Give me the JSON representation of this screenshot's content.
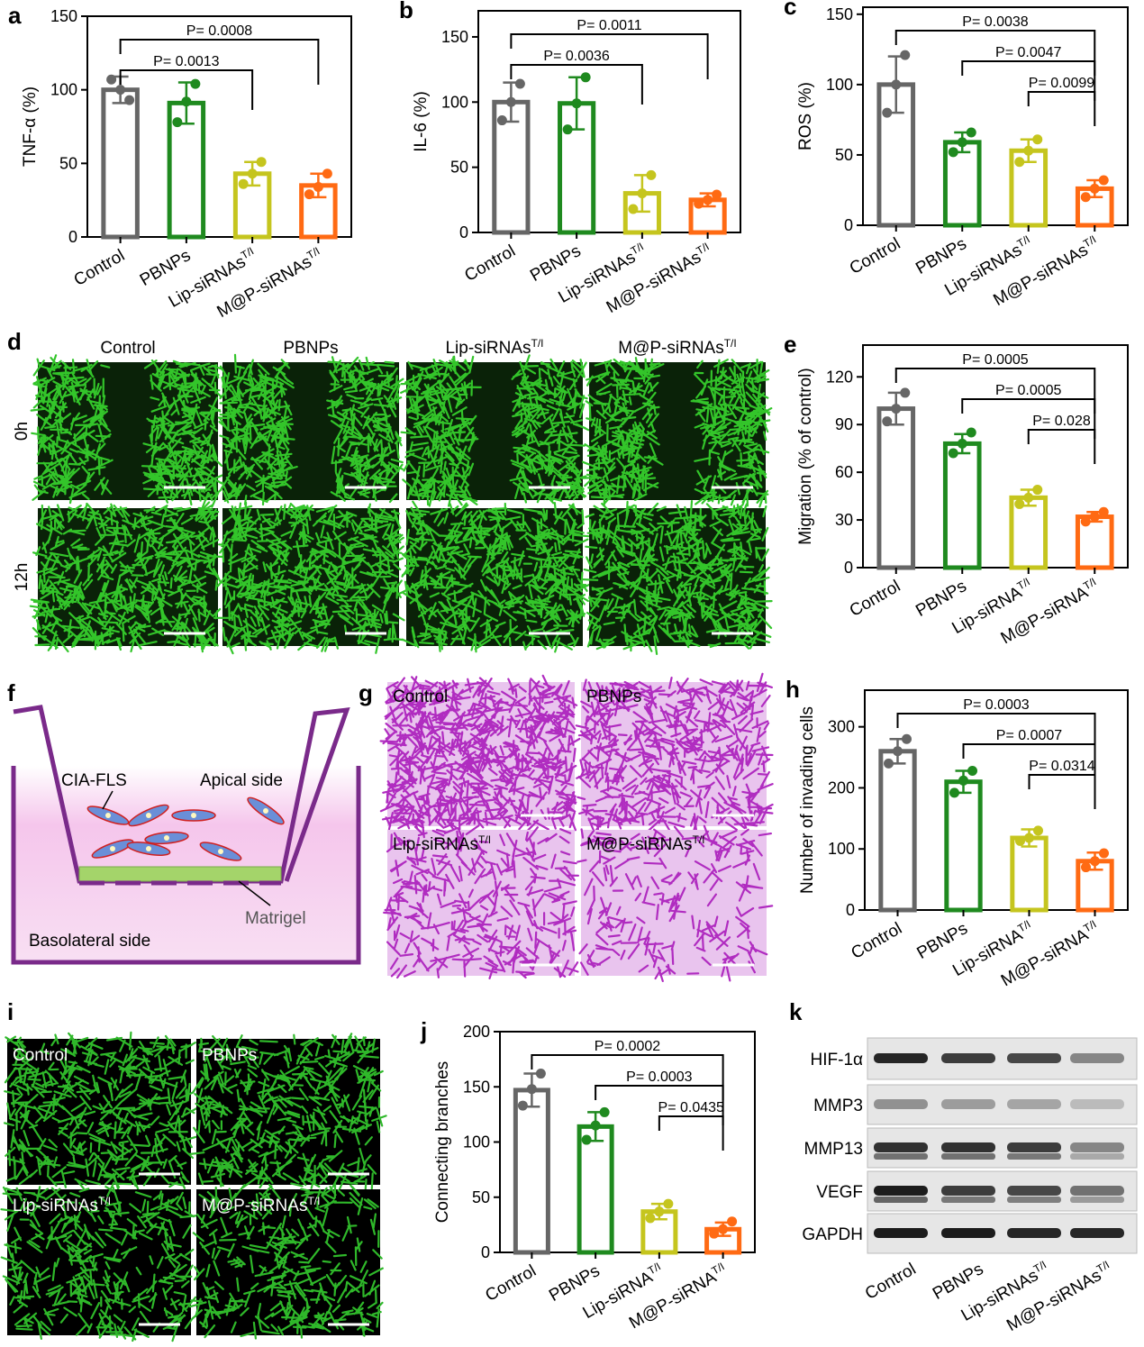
{
  "chart_data": [
    {
      "type": "bar",
      "panel": "a",
      "ylabel": "TNF-α (%)",
      "categories": [
        "Control",
        "PBNPs",
        "Lip-siRNAs",
        "M@P-siRNAs"
      ],
      "category_superscripts": [
        null,
        null,
        "T/I",
        "T/I"
      ],
      "values": [
        100,
        91,
        43,
        35
      ],
      "errors": [
        9,
        14,
        8,
        8
      ],
      "points": [
        [
          107,
          93,
          100
        ],
        [
          78,
          104,
          92
        ],
        [
          36,
          51,
          43
        ],
        [
          29,
          43,
          34
        ]
      ],
      "colors": [
        "#666666",
        "#1f8a1f",
        "#c5c51e",
        "#ff6a13"
      ],
      "ylim": [
        0,
        150
      ],
      "yticks": [
        0,
        50,
        100,
        150
      ],
      "brackets": [
        {
          "from": 0,
          "to": 3,
          "label": "P= 0.0008"
        },
        {
          "from": 0,
          "to": 2,
          "label": "P= 0.0013"
        }
      ]
    },
    {
      "type": "bar",
      "panel": "b",
      "ylabel": "IL-6 (%)",
      "categories": [
        "Control",
        "PBNPs",
        "Lip-siRNAs",
        "M@P-siRNAs"
      ],
      "category_superscripts": [
        null,
        null,
        "T/I",
        "T/I"
      ],
      "values": [
        100,
        99,
        30,
        25
      ],
      "errors": [
        15,
        20,
        14,
        5
      ],
      "points": [
        [
          86,
          114,
          100
        ],
        [
          79,
          119,
          99
        ],
        [
          18,
          44,
          30
        ],
        [
          22,
          29,
          25
        ]
      ],
      "colors": [
        "#666666",
        "#1f8a1f",
        "#c5c51e",
        "#ff6a13"
      ],
      "ylim": [
        0,
        170
      ],
      "yticks": [
        0,
        50,
        100,
        150
      ],
      "brackets": [
        {
          "from": 0,
          "to": 3,
          "label": "P= 0.0011"
        },
        {
          "from": 0,
          "to": 2,
          "label": "P= 0.0036"
        }
      ]
    },
    {
      "type": "bar",
      "panel": "c",
      "ylabel": "ROS (%)",
      "categories": [
        "Control",
        "PBNPs",
        "Lip-siRNAs",
        "M@P-siRNAs"
      ],
      "category_superscripts": [
        null,
        null,
        "T/I",
        "T/I"
      ],
      "values": [
        100,
        59,
        53,
        26
      ],
      "errors": [
        20,
        7,
        8,
        6
      ],
      "points": [
        [
          80,
          121,
          100
        ],
        [
          52,
          66,
          59
        ],
        [
          45,
          61,
          53
        ],
        [
          20,
          32,
          26
        ]
      ],
      "colors": [
        "#666666",
        "#1f8a1f",
        "#c5c51e",
        "#ff6a13"
      ],
      "ylim": [
        0,
        155
      ],
      "yticks": [
        0,
        50,
        100,
        150
      ],
      "brackets": [
        {
          "from": 0,
          "to": 3,
          "label": "P= 0.0038"
        },
        {
          "from": 1,
          "to": 3,
          "label": "P= 0.0047"
        },
        {
          "from": 2,
          "to": 3,
          "label": "P= 0.0099"
        }
      ]
    },
    {
      "type": "bar",
      "panel": "e",
      "ylabel": "Migration (% of control)",
      "categories": [
        "Control",
        "PBNPs",
        "Lip-siRNA",
        "M@P-siRNA"
      ],
      "category_superscripts": [
        null,
        null,
        "T/I",
        "T/I"
      ],
      "values": [
        100,
        78,
        44,
        32
      ],
      "errors": [
        10,
        6,
        5,
        3
      ],
      "points": [
        [
          92,
          110,
          100
        ],
        [
          72,
          85,
          78
        ],
        [
          40,
          49,
          44
        ],
        [
          29,
          35,
          32
        ]
      ],
      "colors": [
        "#666666",
        "#1f8a1f",
        "#c5c51e",
        "#ff6a13"
      ],
      "ylim": [
        0,
        140
      ],
      "yticks": [
        0,
        30,
        60,
        90,
        120
      ],
      "brackets": [
        {
          "from": 0,
          "to": 3,
          "label": "P= 0.0005"
        },
        {
          "from": 1,
          "to": 3,
          "label": "P= 0.0005"
        },
        {
          "from": 2,
          "to": 3,
          "label": "P= 0.028"
        }
      ]
    },
    {
      "type": "bar",
      "panel": "h",
      "ylabel": "Number of invading cells",
      "categories": [
        "Control",
        "PBNPs",
        "Lip-siRNA",
        "M@P-siRNA"
      ],
      "category_superscripts": [
        null,
        null,
        "T/I",
        "T/I"
      ],
      "values": [
        260,
        210,
        118,
        80
      ],
      "errors": [
        20,
        18,
        14,
        14
      ],
      "points": [
        [
          240,
          280,
          260
        ],
        [
          192,
          228,
          212
        ],
        [
          113,
          130,
          118
        ],
        [
          70,
          93,
          80
        ]
      ],
      "colors": [
        "#666666",
        "#1f8a1f",
        "#c5c51e",
        "#ff6a13"
      ],
      "ylim": [
        0,
        360
      ],
      "yticks": [
        0,
        100,
        200,
        300
      ],
      "brackets": [
        {
          "from": 0,
          "to": 3,
          "label": "P= 0.0003"
        },
        {
          "from": 1,
          "to": 3,
          "label": "P= 0.0007"
        },
        {
          "from": 2,
          "to": 3,
          "label": "P= 0.0314"
        }
      ]
    },
    {
      "type": "bar",
      "panel": "j",
      "ylabel": "Connecting branches",
      "categories": [
        "Control",
        "PBNPs",
        "Lip-siRNA",
        "M@P-siRNA"
      ],
      "category_superscripts": [
        null,
        null,
        "T/I",
        "T/I"
      ],
      "values": [
        147,
        114,
        37,
        21
      ],
      "errors": [
        15,
        13,
        7,
        6
      ],
      "points": [
        [
          133,
          162,
          148
        ],
        [
          102,
          127,
          115
        ],
        [
          31,
          44,
          37
        ],
        [
          17,
          28,
          21
        ]
      ],
      "colors": [
        "#666666",
        "#1f8a1f",
        "#c5c51e",
        "#ff6a13"
      ],
      "ylim": [
        0,
        200
      ],
      "yticks": [
        0,
        50,
        100,
        150,
        200
      ],
      "brackets": [
        {
          "from": 0,
          "to": 3,
          "label": "P= 0.0002"
        },
        {
          "from": 1,
          "to": 3,
          "label": "P= 0.0003"
        },
        {
          "from": 2,
          "to": 3,
          "label": "P= 0.0435"
        }
      ]
    }
  ],
  "image_panels": {
    "d": {
      "letter": "d",
      "columns": [
        {
          "text": "Control"
        },
        {
          "text": "PBNPs"
        },
        {
          "text": "Lip-siRNAs",
          "sup": "T/I"
        },
        {
          "text": "M@P-siRNAs",
          "sup": "T/I"
        }
      ],
      "rows": [
        "0h",
        "12h"
      ]
    },
    "f": {
      "letter": "f",
      "cells": "CIA-FLS",
      "apical": "Apical side",
      "matrigel": "Matrigel",
      "basolateral": "Basolateral side"
    },
    "g": {
      "letter": "g",
      "tiles": [
        {
          "text": "Control"
        },
        {
          "text": "PBNPs"
        },
        {
          "text": "Lip-siRNAs",
          "sup": "T/I"
        },
        {
          "text": "M@P-siRNAs",
          "sup": "T/I"
        }
      ]
    },
    "i": {
      "letter": "i",
      "tiles": [
        {
          "text": "Control"
        },
        {
          "text": "PBNPs"
        },
        {
          "text": "Lip-siRNAs",
          "sup": "T/I"
        },
        {
          "text": "M@P-siRNAs",
          "sup": "T/I"
        }
      ]
    },
    "k": {
      "letter": "k",
      "bands": [
        "HIF-1α",
        "MMP3",
        "MMP13",
        "VEGF",
        "GAPDH"
      ],
      "lanes": [
        {
          "text": "Control"
        },
        {
          "text": "PBNPs"
        },
        {
          "text": "Lip-siRNAs",
          "sup": "T/I"
        },
        {
          "text": "M@P-siRNAs",
          "sup": "T/I"
        }
      ]
    }
  }
}
